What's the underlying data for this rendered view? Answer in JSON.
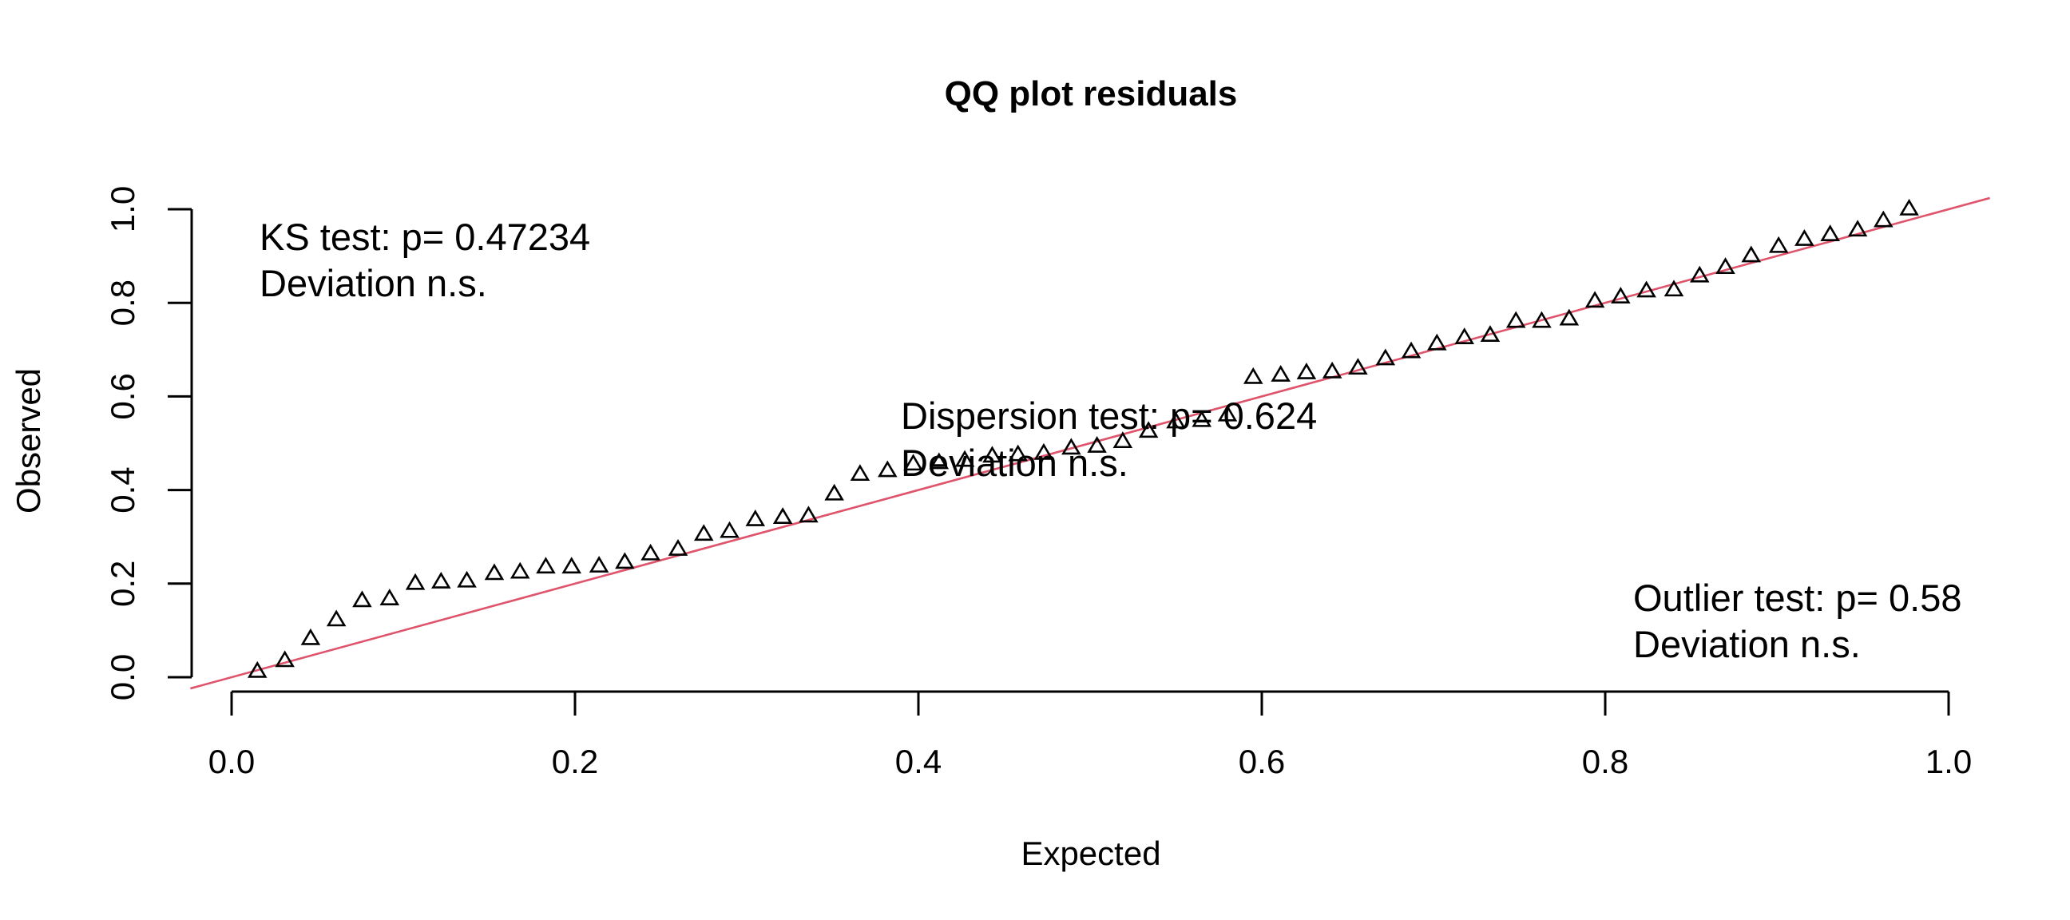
{
  "chart_data": {
    "type": "scatter",
    "title": "QQ plot residuals",
    "xlabel": "Expected",
    "ylabel": "Observed",
    "xlim": [
      0.0,
      1.0
    ],
    "ylim": [
      0.0,
      1.0
    ],
    "xticks": [
      "0.0",
      "0.2",
      "0.4",
      "0.6",
      "0.8",
      "1.0"
    ],
    "yticks": [
      "0.0",
      "0.2",
      "0.4",
      "0.6",
      "0.8",
      "1.0"
    ],
    "grid": false,
    "marker": "open-triangle",
    "reference_line": {
      "intercept": 0,
      "slope": 1,
      "color": "#DF536B"
    },
    "points": {
      "x": [
        0.015,
        0.031,
        0.046,
        0.061,
        0.076,
        0.092,
        0.107,
        0.122,
        0.137,
        0.153,
        0.168,
        0.183,
        0.198,
        0.214,
        0.229,
        0.244,
        0.26,
        0.275,
        0.29,
        0.305,
        0.321,
        0.336,
        0.351,
        0.366,
        0.382,
        0.397,
        0.412,
        0.427,
        0.443,
        0.458,
        0.473,
        0.489,
        0.504,
        0.519,
        0.534,
        0.55,
        0.565,
        0.58,
        0.595,
        0.611,
        0.626,
        0.641,
        0.656,
        0.672,
        0.687,
        0.702,
        0.718,
        0.733,
        0.748,
        0.763,
        0.779,
        0.794,
        0.809,
        0.824,
        0.84,
        0.855,
        0.87,
        0.885,
        0.901,
        0.916,
        0.931,
        0.947,
        0.962,
        0.977
      ],
      "y": [
        0.012,
        0.035,
        0.082,
        0.122,
        0.163,
        0.167,
        0.2,
        0.203,
        0.205,
        0.221,
        0.224,
        0.235,
        0.235,
        0.237,
        0.245,
        0.263,
        0.273,
        0.305,
        0.311,
        0.336,
        0.341,
        0.344,
        0.391,
        0.433,
        0.441,
        0.455,
        0.458,
        0.463,
        0.472,
        0.475,
        0.478,
        0.489,
        0.493,
        0.503,
        0.525,
        0.545,
        0.548,
        0.56,
        0.64,
        0.645,
        0.65,
        0.652,
        0.66,
        0.68,
        0.695,
        0.712,
        0.725,
        0.73,
        0.76,
        0.76,
        0.765,
        0.803,
        0.812,
        0.825,
        0.827,
        0.857,
        0.875,
        0.9,
        0.92,
        0.935,
        0.945,
        0.955,
        0.975,
        1.0
      ]
    },
    "annotations": {
      "ks": [
        "KS test: p= 0.47234",
        "Deviation  n.s."
      ],
      "dispersion": [
        "Dispersion test: p= 0.624",
        "Deviation  n.s."
      ],
      "outlier": [
        "Outlier test: p= 0.58",
        "Deviation  n.s."
      ]
    }
  }
}
